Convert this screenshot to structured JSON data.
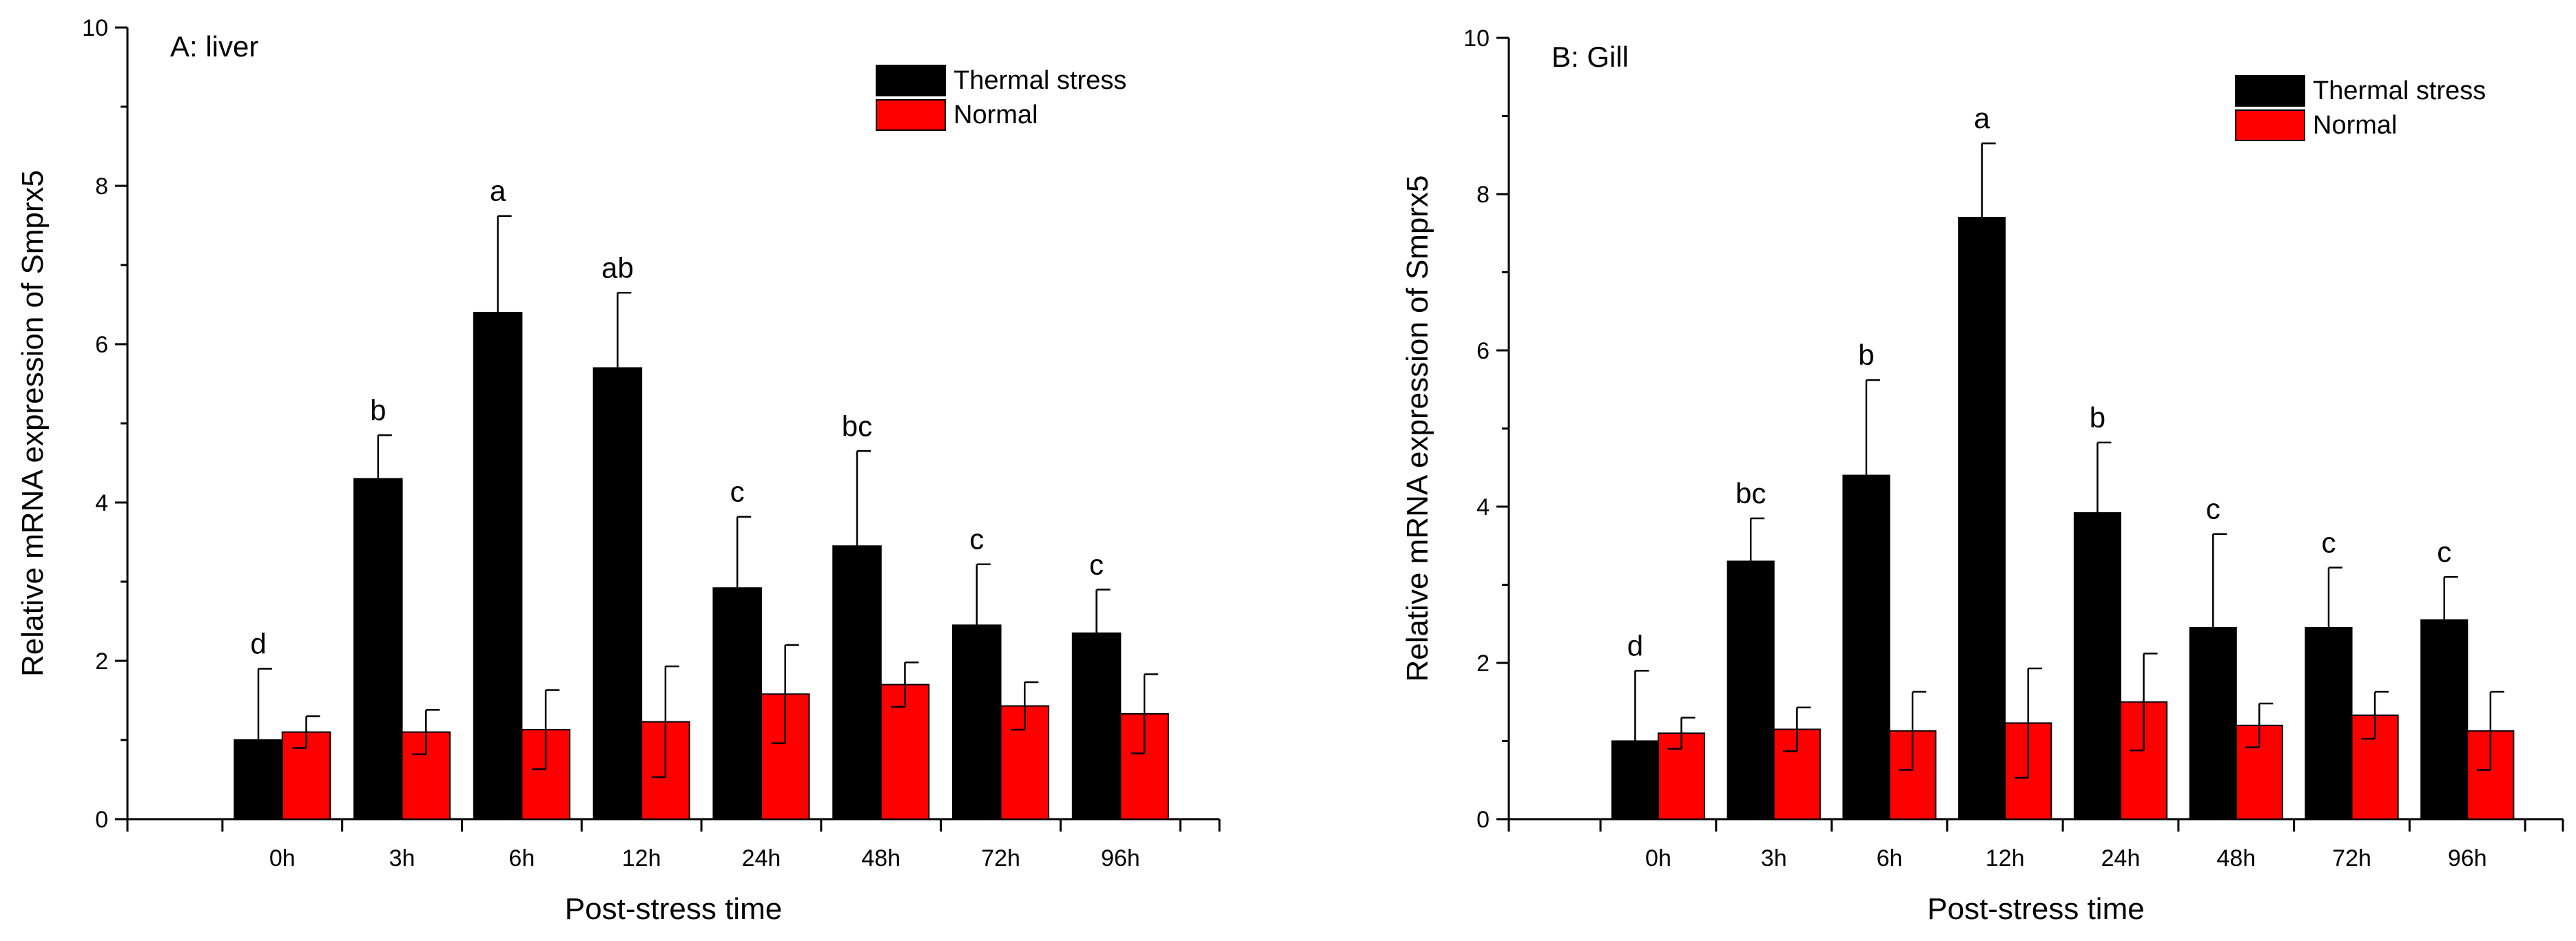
{
  "chart_data": [
    {
      "type": "bar",
      "title": "A: liver",
      "xlabel": "Post-stress time",
      "ylabel": "Relative mRNA expression of Smprx5",
      "categories": [
        "0h",
        "3h",
        "6h",
        "12h",
        "24h",
        "48h",
        "72h",
        "96h"
      ],
      "ylim": [
        0,
        10
      ],
      "yticks": [
        0,
        2,
        4,
        6,
        8,
        10
      ],
      "ytick_labels": [
        "0",
        "2",
        "4",
        "6",
        "8",
        "10"
      ],
      "legend_position": "top-right",
      "series": [
        {
          "name": "Thermal stress",
          "color": "#000000",
          "values": [
            1.0,
            4.3,
            6.4,
            5.7,
            2.92,
            3.45,
            2.45,
            2.35
          ],
          "errors": [
            0.9,
            0.55,
            1.22,
            0.95,
            0.9,
            1.2,
            0.77,
            0.55
          ],
          "labels": [
            "d",
            "b",
            "a",
            "ab",
            "c",
            "bc",
            "c",
            "c"
          ]
        },
        {
          "name": "Normal",
          "color": "#ff0000",
          "values": [
            1.1,
            1.1,
            1.13,
            1.23,
            1.58,
            1.7,
            1.43,
            1.33
          ],
          "errors": [
            0.2,
            0.28,
            0.5,
            0.7,
            0.62,
            0.28,
            0.3,
            0.5
          ]
        }
      ]
    },
    {
      "type": "bar",
      "title": "B: Gill",
      "xlabel": "Post-stress time",
      "ylabel": "Relative mRNA expression of Smprx5",
      "categories": [
        "0h",
        "3h",
        "6h",
        "12h",
        "24h",
        "48h",
        "72h",
        "96h"
      ],
      "ylim": [
        0,
        10
      ],
      "yticks": [
        0,
        2,
        4,
        6,
        8,
        10
      ],
      "ytick_labels": [
        "0",
        "2",
        "4",
        "6",
        "8",
        "10"
      ],
      "legend_position": "top-right",
      "series": [
        {
          "name": "Thermal stress",
          "color": "#000000",
          "values": [
            1.0,
            3.3,
            4.4,
            7.7,
            3.92,
            2.45,
            2.45,
            2.55
          ],
          "errors": [
            0.9,
            0.55,
            1.22,
            0.95,
            0.9,
            1.2,
            0.77,
            0.55
          ],
          "labels": [
            "d",
            "bc",
            "b",
            "a",
            "b",
            "c",
            "c",
            "c"
          ]
        },
        {
          "name": "Normal",
          "color": "#ff0000",
          "values": [
            1.1,
            1.15,
            1.13,
            1.23,
            1.5,
            1.2,
            1.33,
            1.13
          ],
          "errors": [
            0.2,
            0.28,
            0.5,
            0.7,
            0.62,
            0.28,
            0.3,
            0.5
          ]
        }
      ]
    }
  ]
}
